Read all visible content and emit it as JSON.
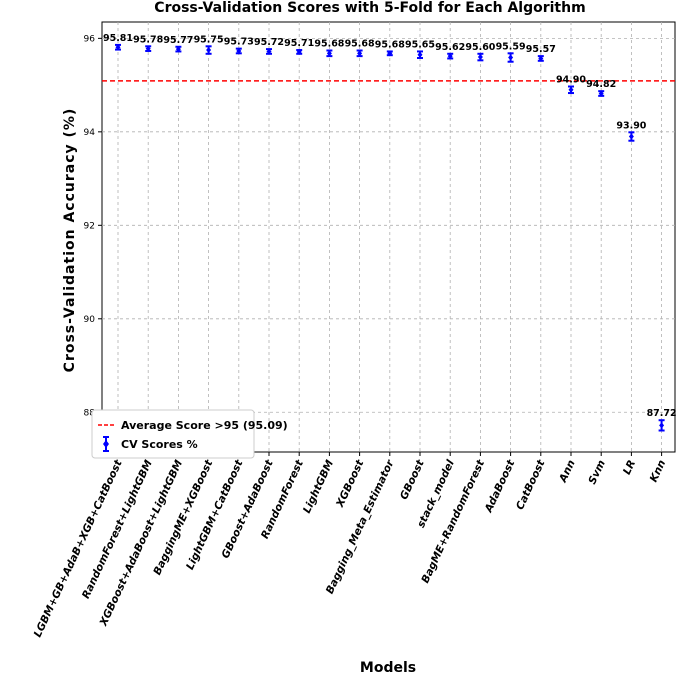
{
  "chart_data": {
    "type": "scatter",
    "title": "Cross-Validation Scores with 5-Fold for Each Algorithm",
    "xlabel": "Models",
    "ylabel": "Cross-Validation Accuracy (%)",
    "ylim": [
      87.15,
      96.35
    ],
    "yticks": [
      88,
      90,
      92,
      94,
      96
    ],
    "grid": true,
    "legend_position": "lower-left",
    "categories": [
      "LGBM+GB+AdaB+XGB+CatBoost",
      "RandomForest+LightGBM",
      "XGBoost+AdaBoost+LightGBM",
      "BaggingME+XGBoost",
      "LightGBM+CatBoost",
      "GBoost+AdaBoost",
      "RandomForest",
      "LightGBM",
      "XGBoost",
      "Bagging_Meta_Estimator",
      "GBoost",
      "stack_model",
      "BagME+RandomForest",
      "AdaBoost",
      "CatBoost",
      "Ann",
      "Svm",
      "LR",
      "Knn"
    ],
    "values": [
      95.81,
      95.78,
      95.77,
      95.75,
      95.73,
      95.72,
      95.71,
      95.68,
      95.68,
      95.68,
      95.65,
      95.62,
      95.6,
      95.59,
      95.57,
      94.9,
      94.82,
      93.9,
      87.72
    ],
    "errors": [
      0.05,
      0.05,
      0.05,
      0.08,
      0.05,
      0.05,
      0.04,
      0.06,
      0.06,
      0.04,
      0.07,
      0.05,
      0.07,
      0.09,
      0.05,
      0.07,
      0.05,
      0.09,
      0.11
    ],
    "labels": [
      "95.81",
      "95.78",
      "95.77",
      "95.75",
      "95.73",
      "95.72",
      "95.71",
      "95.68",
      "95.68",
      "95.68",
      "95.65",
      "95.62",
      "95.60",
      "95.59",
      "95.57",
      "94.90",
      "94.82",
      "93.90",
      "87.72"
    ],
    "average": {
      "value": 95.09,
      "label": "Average Score >95 (95.09)",
      "color": "#ff0000"
    },
    "series_label": "CV Scores %",
    "point_color": "#0000ff"
  }
}
